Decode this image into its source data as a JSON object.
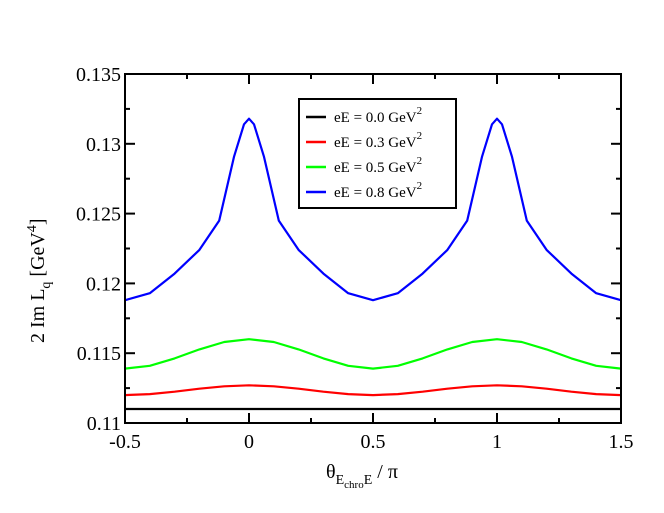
{
  "chart_data": {
    "type": "line",
    "title": "",
    "xlabel": {
      "main": "θ",
      "sub": "E",
      "subsub": "chro",
      "subtail": "E",
      "tail": " / π"
    },
    "ylabel": {
      "main": "2 Im L",
      "sub": "q",
      "unit_pre": " [GeV",
      "unit_sup": "4",
      "unit_post": "]"
    },
    "xlim": [
      -0.5,
      1.5
    ],
    "ylim": [
      0.11,
      0.135
    ],
    "xticks": [
      -0.5,
      0,
      0.5,
      1,
      1.5
    ],
    "xtick_labels": [
      "-0.5",
      "0",
      "0.5",
      "1",
      "1.5"
    ],
    "yticks": [
      0.11,
      0.115,
      0.12,
      0.125,
      0.13,
      0.135
    ],
    "ytick_labels": [
      "0.11",
      "0.115",
      "0.12",
      "0.125",
      "0.13",
      "0.135"
    ],
    "grid": false,
    "legend_position": "top-center",
    "series": [
      {
        "name": "eE = 0.0 GeV",
        "name_sup": "2",
        "color": "#000000",
        "x": [
          -0.5,
          1.5
        ],
        "y": [
          0.111,
          0.111
        ]
      },
      {
        "name": "eE = 0.3 GeV",
        "name_sup": "2",
        "color": "#ff0000",
        "x": [
          -0.5,
          -0.4,
          -0.3,
          -0.2,
          -0.1,
          0,
          0.1,
          0.2,
          0.3,
          0.4,
          0.5,
          0.6,
          0.7,
          0.8,
          0.9,
          1,
          1.1,
          1.2,
          1.3,
          1.4,
          1.5
        ],
        "y": [
          0.112,
          0.11207,
          0.11224,
          0.11246,
          0.11263,
          0.1127,
          0.11263,
          0.11246,
          0.11224,
          0.11207,
          0.112,
          0.11207,
          0.11224,
          0.11246,
          0.11263,
          0.1127,
          0.11263,
          0.11246,
          0.11224,
          0.11207,
          0.112
        ]
      },
      {
        "name": "eE = 0.5 GeV",
        "name_sup": "2",
        "color": "#00ff00",
        "x": [
          -0.5,
          -0.4,
          -0.3,
          -0.2,
          -0.1,
          0,
          0.1,
          0.2,
          0.3,
          0.4,
          0.5,
          0.6,
          0.7,
          0.8,
          0.9,
          1,
          1.1,
          1.2,
          1.3,
          1.4,
          1.5
        ],
        "y": [
          0.1139,
          0.1141,
          0.11463,
          0.11527,
          0.1158,
          0.116,
          0.1158,
          0.11527,
          0.11463,
          0.1141,
          0.1139,
          0.1141,
          0.11463,
          0.11527,
          0.1158,
          0.116,
          0.1158,
          0.11527,
          0.11463,
          0.1141,
          0.1139
        ]
      },
      {
        "name": "eE = 0.8 GeV",
        "name_sup": "2",
        "color": "#0000ff",
        "x": [
          -0.5,
          -0.4,
          -0.3,
          -0.2,
          -0.12,
          -0.06,
          -0.02,
          0,
          0.02,
          0.06,
          0.12,
          0.2,
          0.3,
          0.4,
          0.5,
          0.6,
          0.7,
          0.8,
          0.88,
          0.94,
          0.98,
          1,
          1.02,
          1.06,
          1.12,
          1.2,
          1.3,
          1.4,
          1.5
        ],
        "y": [
          0.1188,
          0.1193,
          0.1207,
          0.1224,
          0.1245,
          0.1291,
          0.1314,
          0.1318,
          0.1314,
          0.1291,
          0.1245,
          0.1224,
          0.1207,
          0.1193,
          0.1188,
          0.1193,
          0.1207,
          0.1224,
          0.1245,
          0.1291,
          0.1314,
          0.1318,
          0.1314,
          0.1291,
          0.1245,
          0.1224,
          0.1207,
          0.1193,
          0.1188
        ]
      }
    ]
  }
}
